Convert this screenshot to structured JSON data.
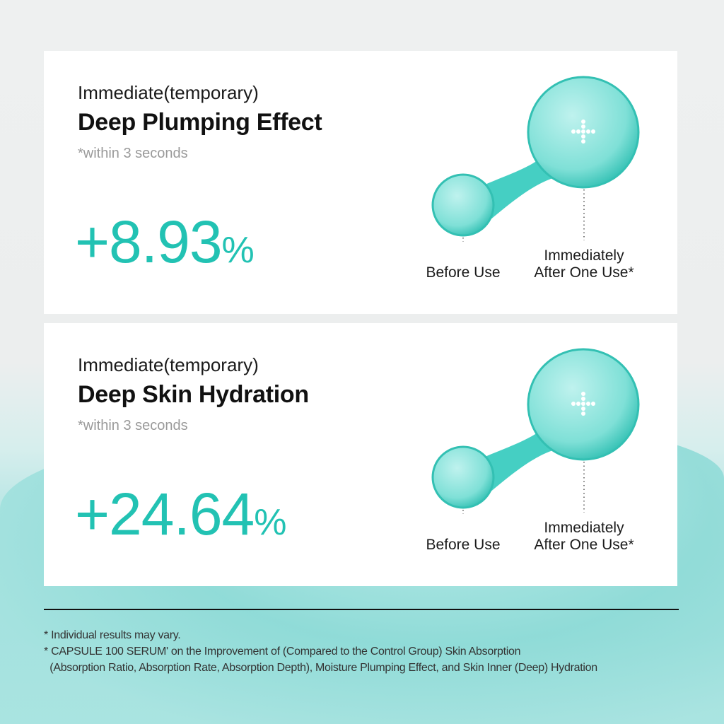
{
  "colors": {
    "accent": "#22c2b3",
    "text": "#111111",
    "muted": "#9a9a9a"
  },
  "cards": [
    {
      "subtitle": "Immediate(temporary)",
      "title": "Deep Plumping Effect",
      "note": "*within 3 seconds",
      "value": "+8.93",
      "unit": "%",
      "before_label": "Before Use",
      "after_label_1": "Immediately",
      "after_label_2": "After One Use*"
    },
    {
      "subtitle": "Immediate(temporary)",
      "title": "Deep Skin Hydration",
      "note": "*within 3 seconds",
      "value": "+24.64",
      "unit": "%",
      "before_label": "Before Use",
      "after_label_1": "Immediately",
      "after_label_2": "After One Use*"
    }
  ],
  "footnotes": [
    "* Individual results may vary.",
    "* CAPSULE 100 SERUM' on the Improvement of (Compared to the Control Group) Skin Absorption",
    "  (Absorption Ratio, Absorption Rate, Absorption Depth), Moisture Plumping Effect, and Skin Inner (Deep) Hydration"
  ]
}
